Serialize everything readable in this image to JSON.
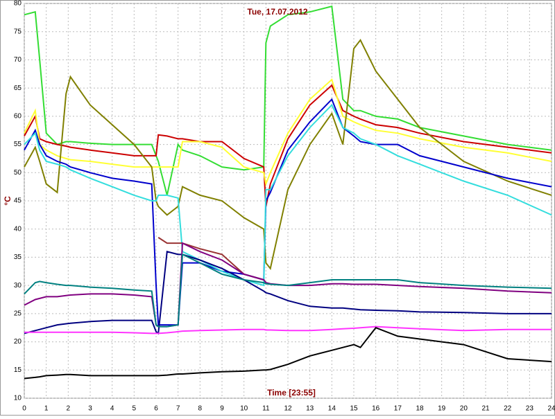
{
  "chart_data": {
    "type": "line",
    "title": "Tue, 17.07.2012",
    "x_label": "Time [23:55]",
    "y_label": "°C",
    "xlim": [
      0,
      24
    ],
    "ylim": [
      10,
      80
    ],
    "xticks": [
      0,
      1,
      2,
      3,
      4,
      5,
      6,
      7,
      8,
      9,
      10,
      11,
      12,
      13,
      14,
      15,
      16,
      17,
      18,
      19,
      20,
      21,
      22,
      23,
      24
    ],
    "yticks": [
      10,
      15,
      20,
      25,
      30,
      35,
      40,
      45,
      50,
      55,
      60,
      65,
      70,
      75,
      80
    ],
    "grid": true,
    "x": [
      0,
      0.5,
      0.7,
      1,
      1.5,
      1.9,
      2.1,
      3,
      4,
      5,
      5.8,
      6,
      6.1,
      6.5,
      7,
      7.2,
      8,
      9,
      10,
      10.9,
      11,
      11.2,
      12,
      13,
      14,
      14.5,
      15,
      15.3,
      16,
      17,
      18,
      20,
      22,
      24
    ],
    "series": [
      {
        "color": "#33dd33",
        "values": [
          78,
          78.5,
          70,
          57,
          55,
          55.5,
          55.5,
          55.2,
          55,
          55,
          55,
          53,
          52,
          46,
          55,
          54,
          53,
          51,
          50.5,
          51,
          73,
          76,
          78,
          78.5,
          79.5,
          63,
          61,
          61,
          60,
          59.5,
          58,
          56.5,
          55,
          54
        ]
      },
      {
        "color": "#cc0000",
        "values": [
          56.5,
          60,
          56,
          55.5,
          55,
          54.7,
          54.5,
          54,
          53.5,
          53,
          53,
          53,
          56.7,
          56.5,
          56,
          56,
          55.5,
          55.5,
          52.5,
          51,
          44,
          48,
          56,
          62,
          65.5,
          61,
          60,
          59.5,
          58.5,
          58,
          57,
          55.5,
          54.5,
          53.5
        ]
      },
      {
        "color": "#ffff33",
        "values": [
          57,
          61,
          55,
          54,
          53,
          52.5,
          52.3,
          52,
          51.5,
          51,
          51,
          51,
          51,
          51,
          51,
          55.5,
          55.5,
          54.5,
          51,
          50,
          48,
          50,
          57,
          63,
          66.5,
          60,
          59,
          58.5,
          57.5,
          57,
          56,
          54.5,
          53.5,
          52
        ]
      },
      {
        "color": "#808000",
        "values": [
          51,
          54.5,
          52,
          48,
          46.5,
          64,
          67,
          62,
          58.5,
          55,
          51,
          45,
          44,
          42.5,
          44,
          47.5,
          46,
          45,
          42,
          40,
          34,
          33,
          47,
          55,
          60.5,
          55,
          72,
          73.5,
          68,
          63,
          58,
          52,
          48.5,
          46
        ]
      },
      {
        "color": "#0000cc",
        "values": [
          54,
          57.5,
          55,
          53,
          52,
          51.5,
          51,
          50,
          49,
          48.5,
          48,
          30,
          23,
          23,
          23,
          34,
          34,
          32.5,
          32,
          31,
          45,
          46.5,
          54,
          59,
          63,
          58,
          56.5,
          55.5,
          55,
          55,
          53,
          51,
          49,
          47.5
        ]
      },
      {
        "color": "#33dddd",
        "values": [
          55,
          57,
          54,
          52,
          51.5,
          51,
          50.5,
          49,
          47.5,
          46,
          45,
          45,
          46,
          46,
          45.5,
          36,
          34.5,
          32.5,
          31,
          30,
          47,
          47,
          53,
          58,
          62,
          58,
          57,
          56,
          55,
          53,
          51.5,
          48.5,
          46,
          42.5
        ]
      },
      {
        "color": "#993333",
        "values": [
          null,
          null,
          null,
          null,
          null,
          null,
          null,
          null,
          null,
          null,
          null,
          null,
          38.5,
          37.5,
          37.5,
          37.5,
          36.5,
          35.5,
          32,
          31,
          null,
          null,
          null,
          null,
          null,
          null,
          null,
          null,
          null,
          null,
          null,
          null,
          null,
          null
        ]
      },
      {
        "color": "#000080",
        "values": [
          21.5,
          22,
          22.2,
          22.5,
          23,
          23.2,
          23.3,
          23.6,
          23.8,
          23.8,
          23.8,
          21.8,
          21.5,
          36,
          35.5,
          35.5,
          34.5,
          33,
          31,
          29,
          28.7,
          28.5,
          27.3,
          26.3,
          26,
          26,
          25.8,
          25.7,
          25.6,
          25.5,
          25.3,
          25.2,
          25,
          25
        ]
      },
      {
        "color": "#800080",
        "values": [
          26.5,
          27.5,
          27.7,
          28,
          28,
          28.2,
          28.3,
          28.5,
          28.5,
          28.3,
          28,
          23,
          22.7,
          22.7,
          23,
          37.5,
          36,
          34.5,
          32,
          31,
          30.5,
          30.3,
          30,
          30,
          30.3,
          30.3,
          30.2,
          30.2,
          30.2,
          30,
          29.8,
          29.5,
          29,
          28.7
        ]
      },
      {
        "color": "#008080",
        "values": [
          28.5,
          30.5,
          30.7,
          30.5,
          30.2,
          30,
          30,
          29.7,
          29.5,
          29.2,
          29,
          23,
          22.7,
          22.7,
          23,
          35.5,
          34,
          32,
          31,
          30.5,
          30.3,
          30.2,
          30,
          30.5,
          31,
          31,
          31,
          31,
          31,
          31,
          30.5,
          30,
          29.7,
          29.5
        ]
      },
      {
        "color": "#ff33ff",
        "values": [
          21.7,
          21.7,
          21.7,
          21.7,
          21.7,
          21.7,
          21.7,
          21.7,
          21.7,
          21.6,
          21.5,
          21.5,
          21.5,
          21.6,
          21.8,
          21.9,
          22,
          22.1,
          22.2,
          22.2,
          22.1,
          22.1,
          22,
          22,
          22.2,
          22.3,
          22.4,
          22.5,
          22.7,
          22.5,
          22.3,
          22,
          22.2,
          22.2
        ]
      },
      {
        "color": "#000000",
        "values": [
          13.5,
          13.7,
          13.8,
          14,
          14.1,
          14.2,
          14.2,
          14,
          14,
          14,
          14,
          14,
          14,
          14.1,
          14.3,
          14.3,
          14.5,
          14.7,
          14.8,
          15,
          15,
          15.1,
          16,
          17.5,
          18.5,
          19,
          19.5,
          19,
          22.5,
          21,
          20.5,
          19.5,
          17,
          16.5
        ]
      }
    ]
  }
}
